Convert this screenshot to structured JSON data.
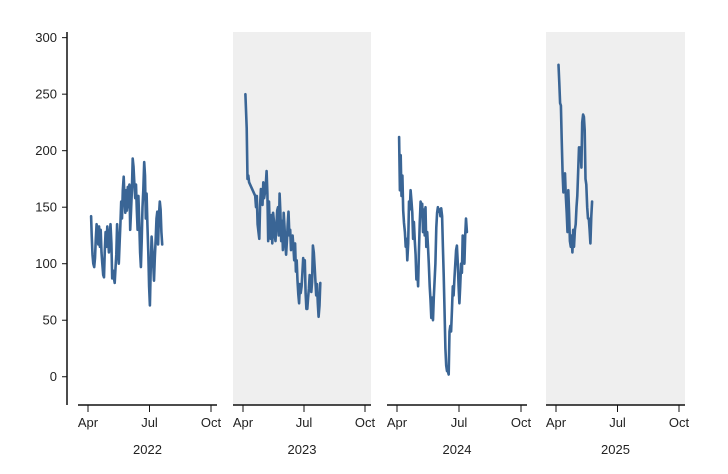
{
  "chart_data": {
    "type": "line",
    "title": "",
    "ylabel": "",
    "xlabel": "",
    "ylim": [
      -25,
      305
    ],
    "y_ticks": [
      0,
      50,
      100,
      150,
      200,
      250,
      300
    ],
    "month_ticks": [
      "Apr",
      "Jul",
      "Oct"
    ],
    "line_color": "#3a6595",
    "shade_color": "#efefef",
    "axis_color": "#111111",
    "panels": [
      {
        "year": "2022",
        "shaded": false,
        "x_unit": "month (Apr=0, Jul=3, Oct=6)",
        "points": [
          [
            0.15,
            142
          ],
          [
            0.18,
            125
          ],
          [
            0.22,
            108
          ],
          [
            0.26,
            100
          ],
          [
            0.3,
            97
          ],
          [
            0.34,
            105
          ],
          [
            0.38,
            122
          ],
          [
            0.42,
            135
          ],
          [
            0.46,
            128
          ],
          [
            0.5,
            117
          ],
          [
            0.54,
            133
          ],
          [
            0.58,
            115
          ],
          [
            0.62,
            130
          ],
          [
            0.66,
            110
          ],
          [
            0.7,
            100
          ],
          [
            0.74,
            90
          ],
          [
            0.78,
            88
          ],
          [
            0.82,
            112
          ],
          [
            0.86,
            128
          ],
          [
            0.9,
            115
          ],
          [
            0.94,
            133
          ],
          [
            0.98,
            122
          ],
          [
            1.02,
            110
          ],
          [
            1.06,
            125
          ],
          [
            1.1,
            135
          ],
          [
            1.14,
            118
          ],
          [
            1.18,
            87
          ],
          [
            1.22,
            94
          ],
          [
            1.26,
            88
          ],
          [
            1.3,
            83
          ],
          [
            1.34,
            96
          ],
          [
            1.38,
            108
          ],
          [
            1.42,
            135
          ],
          [
            1.46,
            118
          ],
          [
            1.5,
            100
          ],
          [
            1.54,
            118
          ],
          [
            1.58,
            135
          ],
          [
            1.62,
            155
          ],
          [
            1.66,
            140
          ],
          [
            1.7,
            165
          ],
          [
            1.74,
            177
          ],
          [
            1.78,
            158
          ],
          [
            1.82,
            145
          ],
          [
            1.86,
            165
          ],
          [
            1.9,
            147
          ],
          [
            1.94,
            168
          ],
          [
            1.98,
            150
          ],
          [
            2.02,
            170
          ],
          [
            2.06,
            130
          ],
          [
            2.1,
            148
          ],
          [
            2.14,
            165
          ],
          [
            2.18,
            193
          ],
          [
            2.22,
            186
          ],
          [
            2.26,
            172
          ],
          [
            2.3,
            158
          ],
          [
            2.34,
            170
          ],
          [
            2.38,
            148
          ],
          [
            2.42,
            130
          ],
          [
            2.46,
            160
          ],
          [
            2.5,
            135
          ],
          [
            2.54,
            110
          ],
          [
            2.58,
            97
          ],
          [
            2.62,
            120
          ],
          [
            2.66,
            150
          ],
          [
            2.7,
            165
          ],
          [
            2.74,
            190
          ],
          [
            2.78,
            178
          ],
          [
            2.82,
            140
          ],
          [
            2.86,
            162
          ],
          [
            2.9,
            135
          ],
          [
            2.94,
            110
          ],
          [
            2.98,
            80
          ],
          [
            3.02,
            63
          ],
          [
            3.06,
            95
          ],
          [
            3.1,
            124
          ],
          [
            3.14,
            112
          ],
          [
            3.18,
            100
          ],
          [
            3.22,
            85
          ],
          [
            3.26,
            105
          ],
          [
            3.3,
            120
          ],
          [
            3.34,
            140
          ],
          [
            3.38,
            146
          ],
          [
            3.42,
            117
          ],
          [
            3.46,
            142
          ],
          [
            3.5,
            155
          ],
          [
            3.54,
            148
          ],
          [
            3.58,
            128
          ],
          [
            3.62,
            117
          ]
        ]
      },
      {
        "year": "2023",
        "shaded": true,
        "x_unit": "month (Apr=0, Jul=3, Oct=6)",
        "points": [
          [
            0.12,
            250
          ],
          [
            0.18,
            220
          ],
          [
            0.22,
            175
          ],
          [
            0.26,
            178
          ],
          [
            0.3,
            172
          ],
          [
            0.6,
            160
          ],
          [
            0.64,
            150
          ],
          [
            0.68,
            160
          ],
          [
            0.72,
            135
          ],
          [
            0.76,
            128
          ],
          [
            0.8,
            122
          ],
          [
            0.84,
            152
          ],
          [
            0.88,
            166
          ],
          [
            0.92,
            162
          ],
          [
            0.96,
            152
          ],
          [
            1.0,
            172
          ],
          [
            1.04,
            158
          ],
          [
            1.08,
            163
          ],
          [
            1.12,
            170
          ],
          [
            1.16,
            182
          ],
          [
            1.2,
            162
          ],
          [
            1.24,
            120
          ],
          [
            1.28,
            155
          ],
          [
            1.32,
            130
          ],
          [
            1.36,
            122
          ],
          [
            1.4,
            143
          ],
          [
            1.44,
            118
          ],
          [
            1.48,
            145
          ],
          [
            1.52,
            138
          ],
          [
            1.56,
            125
          ],
          [
            1.6,
            120
          ],
          [
            1.64,
            132
          ],
          [
            1.68,
            147
          ],
          [
            1.72,
            150
          ],
          [
            1.76,
            125
          ],
          [
            1.8,
            162
          ],
          [
            1.84,
            145
          ],
          [
            1.88,
            120
          ],
          [
            1.92,
            138
          ],
          [
            1.96,
            112
          ],
          [
            2.0,
            145
          ],
          [
            2.04,
            133
          ],
          [
            2.08,
            118
          ],
          [
            2.12,
            108
          ],
          [
            2.16,
            120
          ],
          [
            2.2,
            135
          ],
          [
            2.24,
            146
          ],
          [
            2.28,
            125
          ],
          [
            2.32,
            130
          ],
          [
            2.36,
            112
          ],
          [
            2.4,
            120
          ],
          [
            2.44,
            125
          ],
          [
            2.48,
            115
          ],
          [
            2.52,
            103
          ],
          [
            2.56,
            118
          ],
          [
            2.6,
            93
          ],
          [
            2.64,
            103
          ],
          [
            2.68,
            85
          ],
          [
            2.72,
            73
          ],
          [
            2.76,
            65
          ],
          [
            2.8,
            82
          ],
          [
            2.84,
            74
          ],
          [
            2.88,
            80
          ],
          [
            2.92,
            92
          ],
          [
            2.96,
            105
          ],
          [
            3.0,
            98
          ],
          [
            3.04,
            103
          ],
          [
            3.08,
            74
          ],
          [
            3.12,
            60
          ],
          [
            3.16,
            60
          ],
          [
            3.2,
            70
          ],
          [
            3.24,
            78
          ],
          [
            3.28,
            90
          ],
          [
            3.32,
            82
          ],
          [
            3.36,
            75
          ],
          [
            3.4,
            84
          ],
          [
            3.44,
            116
          ],
          [
            3.48,
            110
          ],
          [
            3.52,
            98
          ],
          [
            3.56,
            85
          ],
          [
            3.6,
            72
          ],
          [
            3.64,
            82
          ],
          [
            3.68,
            65
          ],
          [
            3.72,
            53
          ],
          [
            3.76,
            63
          ],
          [
            3.8,
            83
          ]
        ]
      },
      {
        "year": "2024",
        "shaded": false,
        "x_unit": "month (Apr=0, Jul=3, Oct=6)",
        "points": [
          [
            0.1,
            212
          ],
          [
            0.14,
            165
          ],
          [
            0.18,
            196
          ],
          [
            0.22,
            160
          ],
          [
            0.26,
            178
          ],
          [
            0.3,
            147
          ],
          [
            0.34,
            136
          ],
          [
            0.38,
            128
          ],
          [
            0.42,
            115
          ],
          [
            0.46,
            122
          ],
          [
            0.5,
            103
          ],
          [
            0.54,
            118
          ],
          [
            0.58,
            155
          ],
          [
            0.62,
            148
          ],
          [
            0.66,
            165
          ],
          [
            0.7,
            155
          ],
          [
            0.74,
            145
          ],
          [
            0.78,
            122
          ],
          [
            0.82,
            137
          ],
          [
            0.86,
            120
          ],
          [
            0.9,
            108
          ],
          [
            0.94,
            86
          ],
          [
            0.98,
            95
          ],
          [
            1.02,
            80
          ],
          [
            1.06,
            110
          ],
          [
            1.1,
            135
          ],
          [
            1.14,
            155
          ],
          [
            1.18,
            148
          ],
          [
            1.22,
            153
          ],
          [
            1.26,
            128
          ],
          [
            1.3,
            148
          ],
          [
            1.34,
            125
          ],
          [
            1.38,
            150
          ],
          [
            1.42,
            115
          ],
          [
            1.46,
            128
          ],
          [
            1.5,
            115
          ],
          [
            1.54,
            100
          ],
          [
            1.58,
            80
          ],
          [
            1.62,
            68
          ],
          [
            1.66,
            52
          ],
          [
            1.7,
            70
          ],
          [
            1.74,
            50
          ],
          [
            1.78,
            70
          ],
          [
            1.82,
            85
          ],
          [
            1.86,
            100
          ],
          [
            1.9,
            132
          ],
          [
            1.94,
            145
          ],
          [
            1.98,
            150
          ],
          [
            2.02,
            146
          ],
          [
            2.06,
            148
          ],
          [
            2.1,
            142
          ],
          [
            2.14,
            149
          ],
          [
            2.18,
            142
          ],
          [
            2.22,
            115
          ],
          [
            2.26,
            90
          ],
          [
            2.3,
            60
          ],
          [
            2.34,
            25
          ],
          [
            2.38,
            10
          ],
          [
            2.42,
            5
          ],
          [
            2.46,
            5
          ],
          [
            2.5,
            2
          ],
          [
            2.54,
            40
          ],
          [
            2.58,
            45
          ],
          [
            2.62,
            40
          ],
          [
            2.66,
            60
          ],
          [
            2.7,
            80
          ],
          [
            2.74,
            72
          ],
          [
            2.78,
            88
          ],
          [
            2.82,
            100
          ],
          [
            2.86,
            112
          ],
          [
            2.9,
            116
          ],
          [
            2.94,
            100
          ],
          [
            2.98,
            80
          ],
          [
            3.02,
            65
          ],
          [
            3.06,
            80
          ],
          [
            3.1,
            100
          ],
          [
            3.14,
            92
          ],
          [
            3.18,
            125
          ],
          [
            3.22,
            116
          ],
          [
            3.26,
            100
          ],
          [
            3.3,
            125
          ],
          [
            3.34,
            140
          ],
          [
            3.38,
            128
          ]
        ]
      },
      {
        "year": "2025",
        "shaded": true,
        "x_unit": "month (Apr=0, Jul=3, Oct=6)",
        "points": [
          [
            0.12,
            276
          ],
          [
            0.16,
            260
          ],
          [
            0.2,
            242
          ],
          [
            0.24,
            240
          ],
          [
            0.28,
            210
          ],
          [
            0.32,
            180
          ],
          [
            0.36,
            163
          ],
          [
            0.4,
            178
          ],
          [
            0.44,
            180
          ],
          [
            0.48,
            160
          ],
          [
            0.52,
            145
          ],
          [
            0.56,
            128
          ],
          [
            0.6,
            165
          ],
          [
            0.64,
            145
          ],
          [
            0.68,
            120
          ],
          [
            0.72,
            115
          ],
          [
            0.76,
            125
          ],
          [
            0.8,
            110
          ],
          [
            0.84,
            130
          ],
          [
            0.88,
            115
          ],
          [
            0.92,
            130
          ],
          [
            0.96,
            135
          ],
          [
            1.0,
            150
          ],
          [
            1.04,
            160
          ],
          [
            1.08,
            180
          ],
          [
            1.12,
            203
          ],
          [
            1.16,
            195
          ],
          [
            1.2,
            203
          ],
          [
            1.24,
            185
          ],
          [
            1.28,
            225
          ],
          [
            1.32,
            232
          ],
          [
            1.36,
            230
          ],
          [
            1.4,
            218
          ],
          [
            1.44,
            175
          ],
          [
            1.48,
            170
          ],
          [
            1.52,
            150
          ],
          [
            1.56,
            140
          ],
          [
            1.6,
            140
          ],
          [
            1.64,
            130
          ],
          [
            1.68,
            118
          ],
          [
            1.72,
            142
          ],
          [
            1.76,
            155
          ]
        ]
      }
    ]
  }
}
